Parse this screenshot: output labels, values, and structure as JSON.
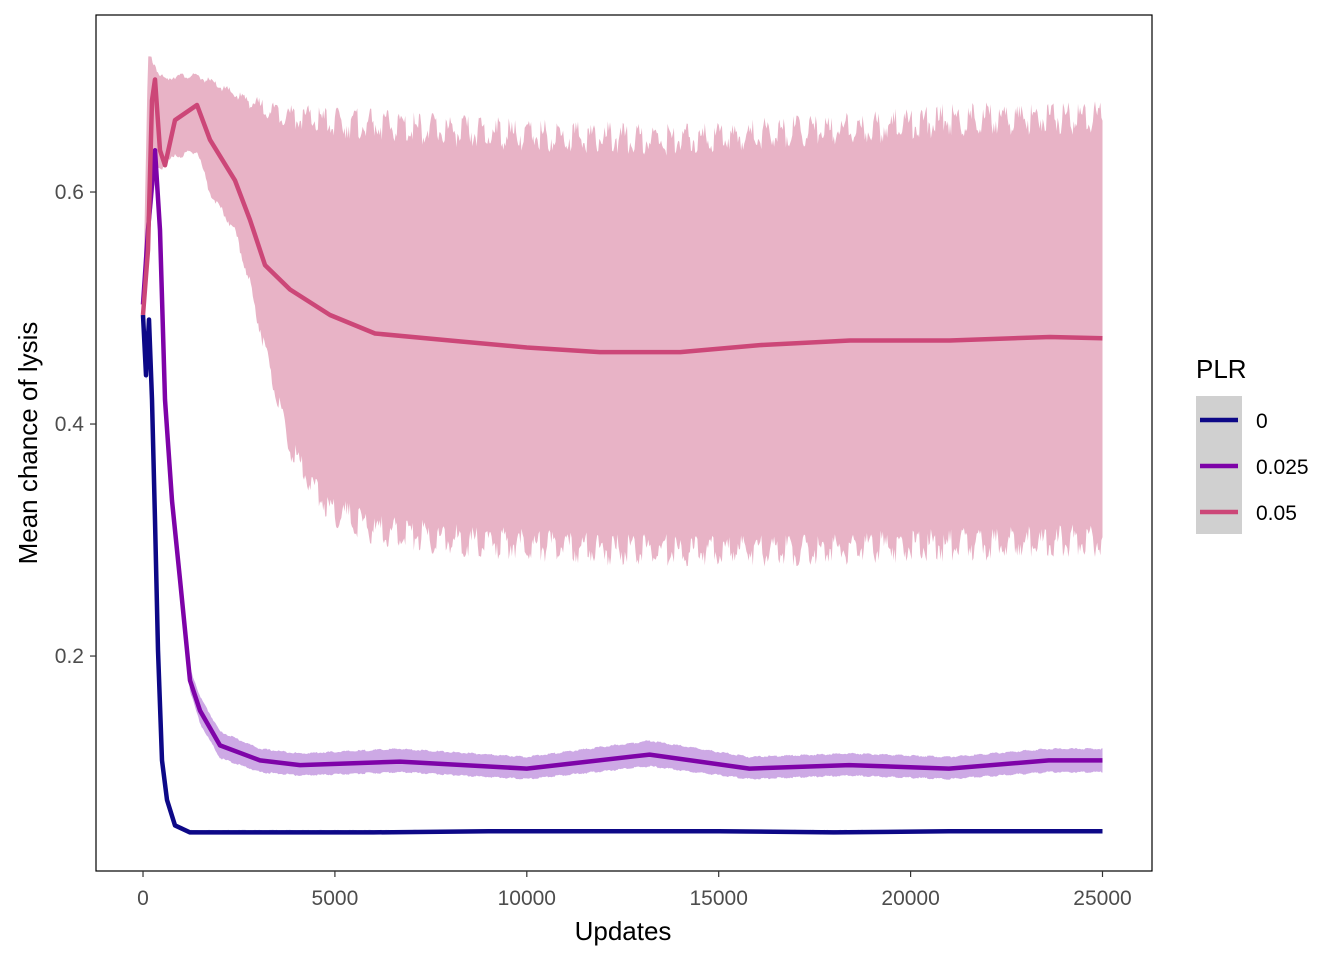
{
  "chart_data": {
    "type": "line",
    "title": "",
    "xlabel": "Updates",
    "ylabel": "Mean chance of lysis",
    "xlim": [
      -1225,
      26290
    ],
    "ylim": [
      0.0147,
      0.7526
    ],
    "xticks": [
      0,
      5000,
      10000,
      15000,
      20000,
      25000
    ],
    "xtick_labels": [
      "0",
      "5000",
      "10000",
      "15000",
      "20000",
      "25000"
    ],
    "yticks": [
      0.2,
      0.4,
      0.6
    ],
    "ytick_labels": [
      "0.2",
      "0.4",
      "0.6"
    ],
    "grid": false,
    "legend": {
      "title": "PLR",
      "placement": "right",
      "entries": [
        "0",
        "0.025",
        "0.05"
      ]
    },
    "series": [
      {
        "name": "0",
        "color": "#0d0887",
        "ribbon_color": "#8a86c8",
        "x": [
          0,
          78,
          156,
          234,
          312,
          390,
          495,
          625,
          834,
          1224,
          3000,
          6000,
          9000,
          12000,
          15000,
          18000,
          21000,
          24000,
          25000
        ],
        "mean": [
          0.494,
          0.442,
          0.49,
          0.421,
          0.317,
          0.205,
          0.11,
          0.076,
          0.054,
          0.048,
          0.048,
          0.048,
          0.049,
          0.049,
          0.049,
          0.048,
          0.049,
          0.049,
          0.049
        ],
        "lower": [
          0.485,
          0.435,
          0.48,
          0.413,
          0.31,
          0.2,
          0.106,
          0.073,
          0.052,
          0.047,
          0.047,
          0.047,
          0.048,
          0.048,
          0.048,
          0.047,
          0.048,
          0.048,
          0.048
        ],
        "upper": [
          0.503,
          0.45,
          0.5,
          0.43,
          0.325,
          0.21,
          0.114,
          0.079,
          0.056,
          0.05,
          0.05,
          0.05,
          0.05,
          0.05,
          0.05,
          0.05,
          0.05,
          0.05,
          0.05
        ]
      },
      {
        "name": "0.025",
        "color": "#7e03a8",
        "ribbon_color": "#c49ae0",
        "x": [
          0,
          130,
          312,
          443,
          573,
          755,
          964,
          1224,
          1485,
          2006,
          3048,
          4090,
          6695,
          10000,
          13200,
          15800,
          18400,
          21000,
          23600,
          25000
        ],
        "mean": [
          0.503,
          0.567,
          0.636,
          0.567,
          0.421,
          0.334,
          0.266,
          0.179,
          0.153,
          0.123,
          0.11,
          0.106,
          0.109,
          0.103,
          0.115,
          0.103,
          0.106,
          0.103,
          0.11,
          0.11
        ],
        "lower": [
          0.495,
          0.55,
          0.61,
          0.55,
          0.405,
          0.32,
          0.255,
          0.17,
          0.142,
          0.112,
          0.1,
          0.097,
          0.1,
          0.094,
          0.105,
          0.094,
          0.097,
          0.094,
          0.1,
          0.1
        ],
        "upper": [
          0.51,
          0.585,
          0.66,
          0.585,
          0.435,
          0.348,
          0.278,
          0.19,
          0.165,
          0.135,
          0.12,
          0.116,
          0.12,
          0.113,
          0.127,
          0.113,
          0.116,
          0.113,
          0.12,
          0.12
        ]
      },
      {
        "name": "0.05",
        "color": "#cc4778",
        "ribbon_color": "#e8b3c6",
        "x": [
          0,
          130,
          234,
          312,
          443,
          573,
          834,
          1407,
          1745,
          2397,
          2787,
          3178,
          3829,
          4871,
          6044,
          8000,
          10000,
          11900,
          14000,
          16070,
          18420,
          21020,
          23630,
          25000
        ],
        "mean": [
          0.494,
          0.55,
          0.679,
          0.697,
          0.636,
          0.623,
          0.662,
          0.675,
          0.645,
          0.61,
          0.576,
          0.537,
          0.516,
          0.494,
          0.478,
          0.472,
          0.466,
          0.462,
          0.462,
          0.468,
          0.472,
          0.472,
          0.475,
          0.474
        ],
        "lower": [
          0.49,
          0.576,
          0.6,
          0.619,
          0.62,
          0.625,
          0.63,
          0.636,
          0.6,
          0.567,
          0.52,
          0.464,
          0.378,
          0.326,
          0.309,
          0.3,
          0.296,
          0.292,
          0.291,
          0.291,
          0.293,
          0.296,
          0.298,
          0.3
        ],
        "upper": [
          0.507,
          0.714,
          0.714,
          0.71,
          0.7,
          0.697,
          0.7,
          0.7,
          0.695,
          0.684,
          0.678,
          0.672,
          0.666,
          0.66,
          0.658,
          0.653,
          0.649,
          0.647,
          0.645,
          0.65,
          0.654,
          0.662,
          0.664,
          0.664
        ]
      }
    ]
  }
}
